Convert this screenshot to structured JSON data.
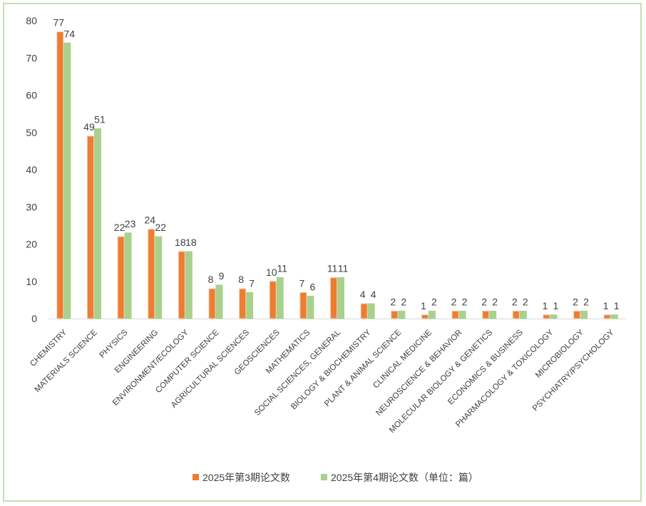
{
  "chart_data": {
    "type": "bar",
    "title": "",
    "xlabel": "",
    "ylabel": "",
    "ylim": [
      0,
      80
    ],
    "yticks": [
      0,
      10,
      20,
      30,
      40,
      50,
      60,
      70,
      80
    ],
    "grid": false,
    "legend_position": "bottom",
    "categories": [
      "CHEMISTRY",
      "MATERIALS SCIENCE",
      "PHYSICS",
      "ENGINEERING",
      "ENVIRONMENT/ECOLOGY",
      "COMPUTER SCIENCE",
      "AGRICULTURAL SCIENCES",
      "GEOSCIENCES",
      "MATHEMATICS",
      "SOCIAL SCIENCES, GENERAL",
      "BIOLOGY & BIOCHEMISTRY",
      "PLANT & ANIMAL SCIENCE",
      "CLINICAL MEDICINE",
      "NEUROSCIENCE & BEHAVIOR",
      "MOLECULAR BIOLOGY & GENETICS",
      "ECONOMICS & BUSINESS",
      "PHARMACOLOGY & TOXICOLOGY",
      "MICROBIOLOGY",
      "PSYCHIATRY/PSYCHOLOGY"
    ],
    "series": [
      {
        "name": "2025年第3期论文数",
        "color": "#ed7d31",
        "edge": "#f8cbad",
        "values": [
          77,
          49,
          22,
          24,
          18,
          8,
          8,
          10,
          7,
          11,
          4,
          2,
          1,
          2,
          2,
          2,
          1,
          2,
          1
        ]
      },
      {
        "name": "2025年第4期论文数（单位：篇）",
        "color": "#a9d18e",
        "edge": "#a9d18e",
        "values": [
          74,
          51,
          23,
          22,
          18,
          9,
          7,
          11,
          6,
          11,
          4,
          2,
          2,
          2,
          2,
          2,
          1,
          2,
          1
        ]
      }
    ]
  }
}
